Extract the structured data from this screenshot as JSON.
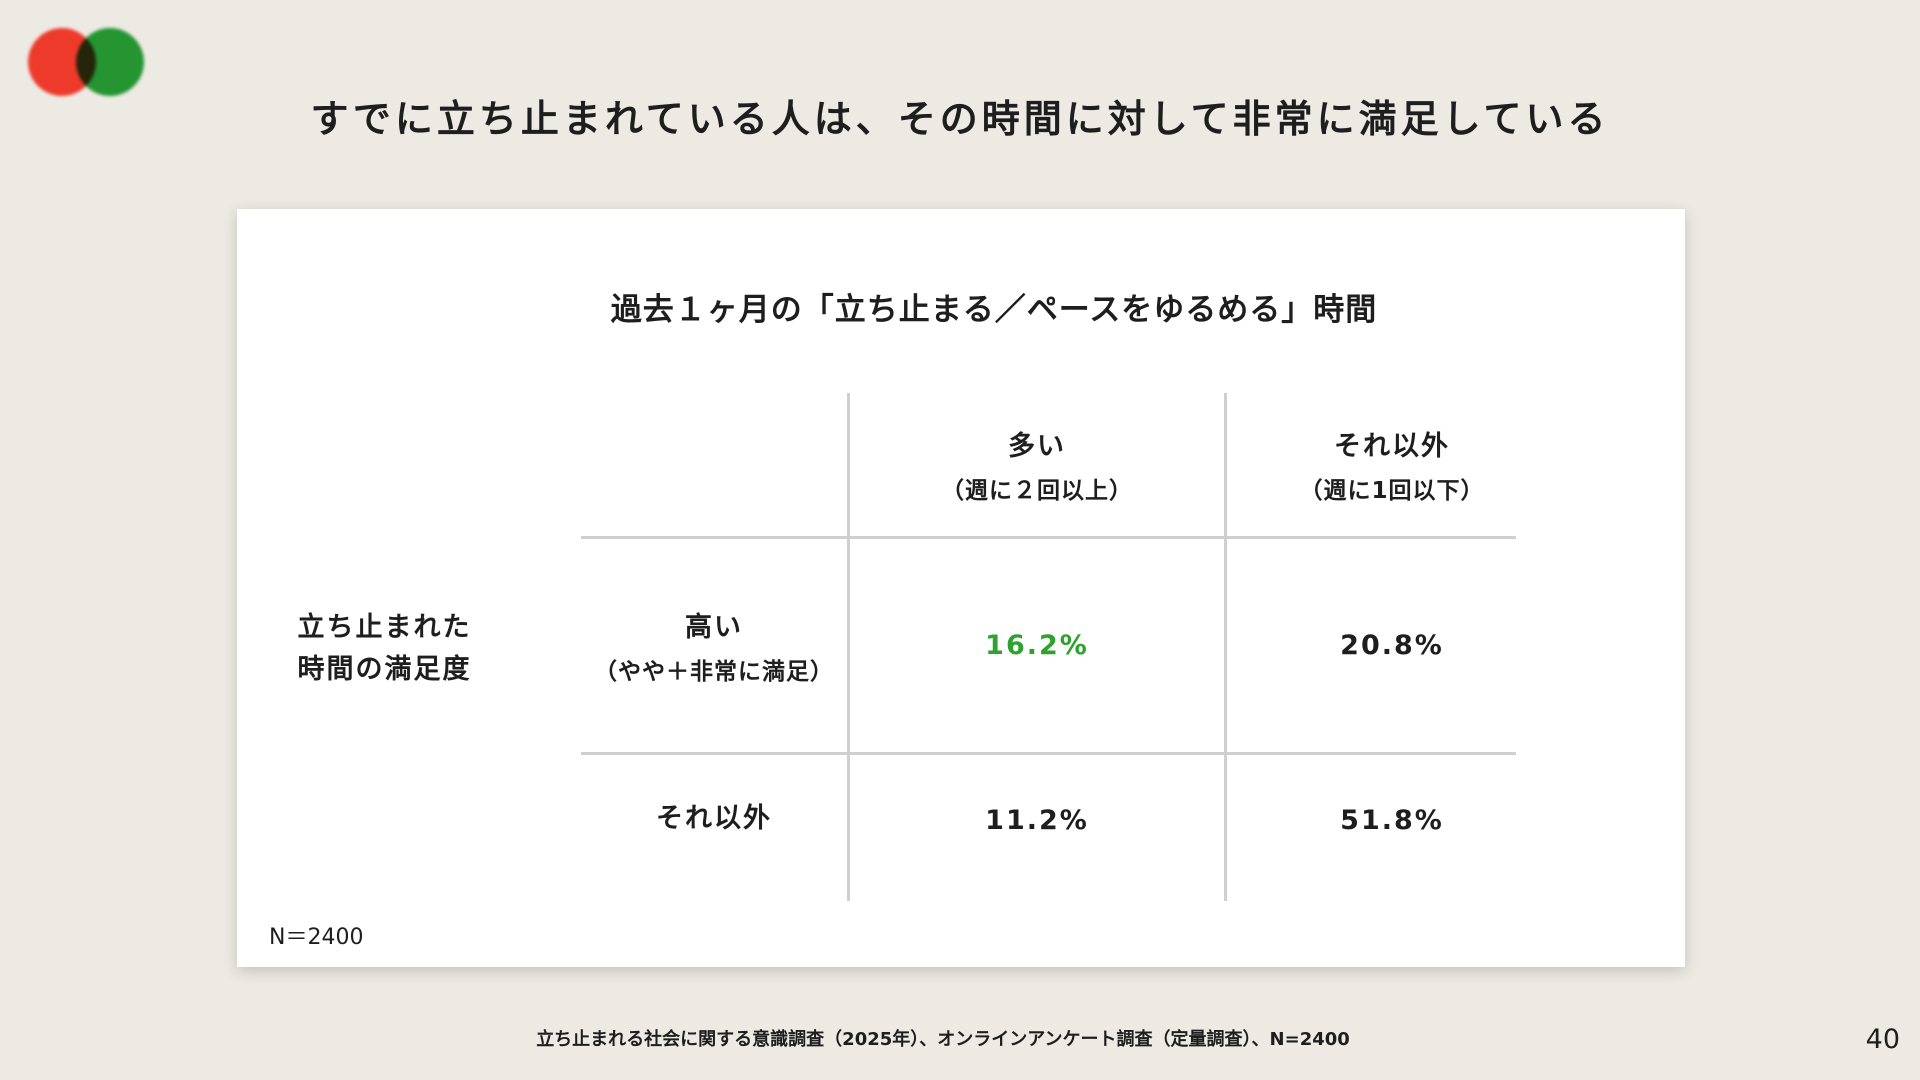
{
  "title": "すでに立ち止まれている人は、その時間に対して非常に満足している",
  "card": {
    "title": "過去１ヶ月の「立ち止まる／ペースをゆるめる」時間",
    "row_axis_label": [
      "立ち止まれた",
      "時間の満足度"
    ],
    "columns": [
      {
        "main": "多い",
        "sub": "（週に２回以上）"
      },
      {
        "main": "それ以外",
        "sub": "（週に1回以下）"
      }
    ],
    "rows": [
      {
        "main": "高い",
        "sub": "（やや＋非常に満足）",
        "values": [
          "16.2%",
          "20.8%"
        ]
      },
      {
        "main": "それ以外",
        "sub": "",
        "values": [
          "11.2%",
          "51.8%"
        ]
      }
    ],
    "highlight_color": "#2ea12e",
    "n_note": "N＝2400"
  },
  "source": "立ち止まれる社会に関する意識調査（2025年）、オンラインアンケート調査（定量調査）、N=2400",
  "page_number": "40",
  "logo": {
    "colors": [
      "#ee3a2b",
      "#26a336"
    ]
  }
}
